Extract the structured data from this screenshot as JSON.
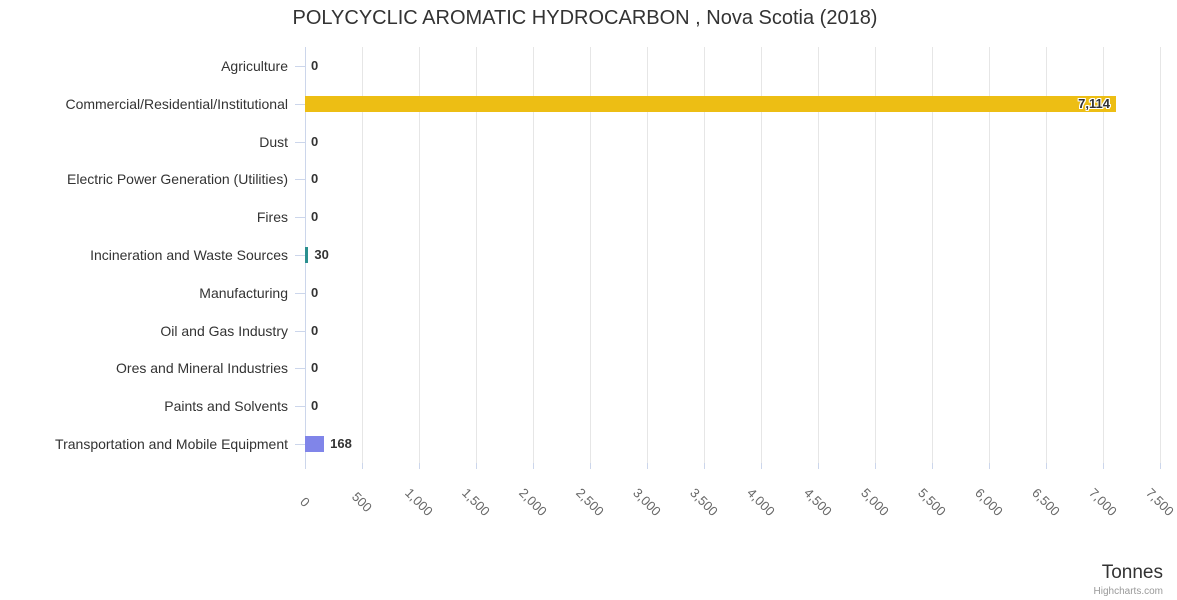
{
  "chart_data": {
    "type": "bar",
    "orientation": "horizontal",
    "title": "POLYCYCLIC AROMATIC HYDROCARBON , Nova Scotia (2018)",
    "categories": [
      "Agriculture",
      "Commercial/Residential/Institutional",
      "Dust",
      "Electric Power Generation (Utilities)",
      "Fires",
      "Incineration and Waste Sources",
      "Manufacturing",
      "Oil and Gas Industry",
      "Ores and Mineral Industries",
      "Paints and Solvents",
      "Transportation and Mobile Equipment"
    ],
    "values": [
      0,
      7114,
      0,
      0,
      0,
      30,
      0,
      0,
      0,
      0,
      168
    ],
    "value_labels": [
      "0",
      "7,114",
      "0",
      "0",
      "0",
      "30",
      "0",
      "0",
      "0",
      "0",
      "168"
    ],
    "bar_colors": [
      null,
      "#edbe14",
      null,
      null,
      null,
      "#2b908f",
      null,
      null,
      null,
      null,
      "#8085e9"
    ],
    "xlabel": "Tonnes",
    "xlim": [
      0,
      7500
    ],
    "x_tick_interval": 500,
    "x_tick_labels": [
      "0",
      "500",
      "1,000",
      "1,500",
      "2,000",
      "2,500",
      "3,000",
      "3,500",
      "4,000",
      "4,500",
      "5,000",
      "5,500",
      "6,000",
      "6,500",
      "7,000",
      "7,500"
    ],
    "grid": true,
    "legend": "none"
  },
  "colors": {
    "grid_line": "#e6e6e6",
    "axis_line": "#ccd6eb",
    "tick_mark": "#ccd6eb",
    "title_text": "#333333",
    "category_text": "#333333",
    "tick_text": "#666666",
    "data_label_text": "#333333"
  },
  "credit": {
    "label": "Highcharts.com"
  }
}
